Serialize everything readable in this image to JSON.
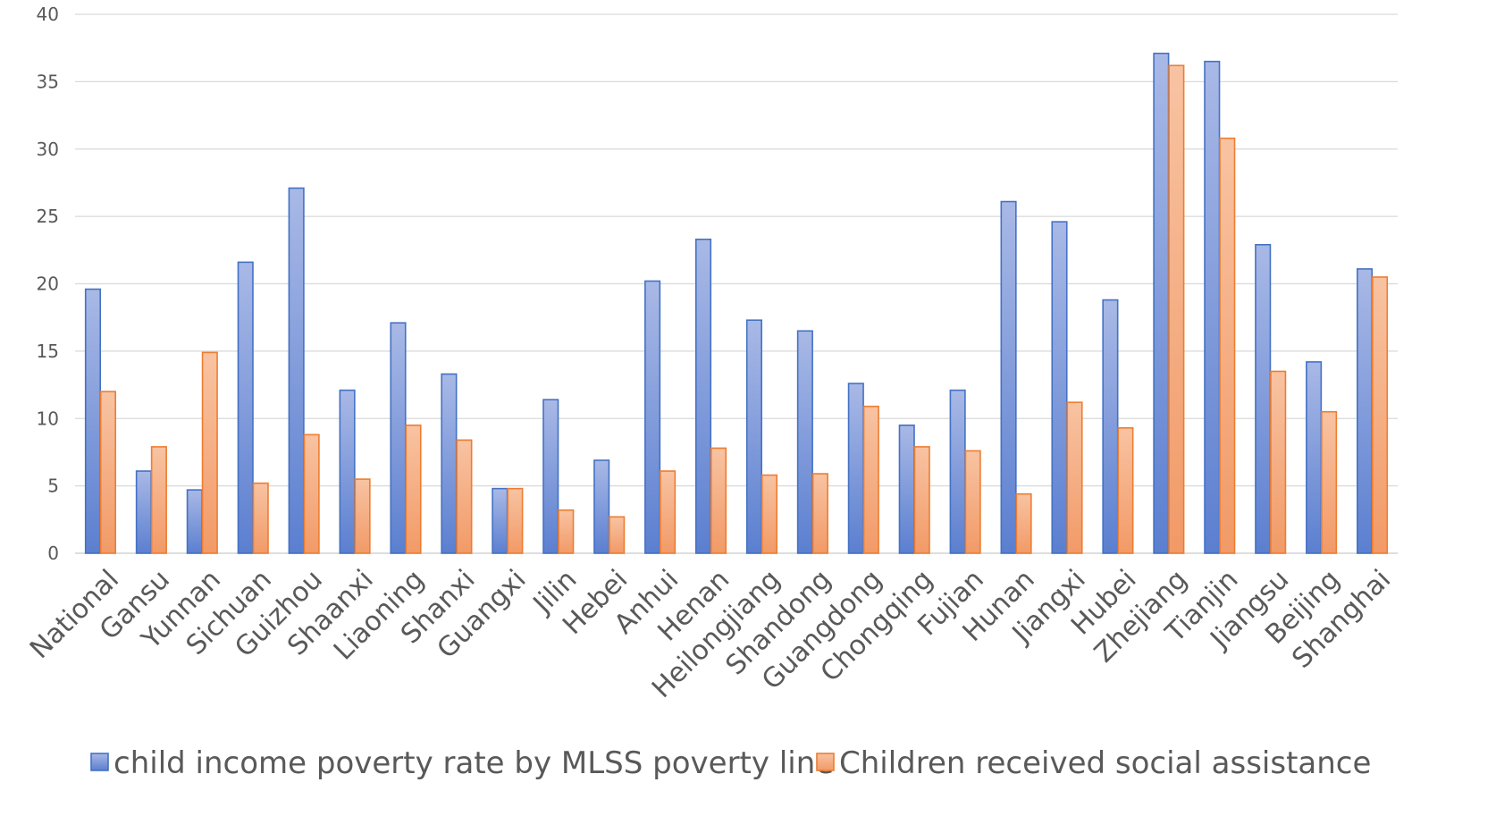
{
  "chart_data": {
    "type": "bar",
    "title": "",
    "xlabel": "",
    "ylabel": "",
    "ylim": [
      0,
      40
    ],
    "yticks": [
      0,
      5,
      10,
      15,
      20,
      25,
      30,
      35,
      40
    ],
    "grid": true,
    "legend_position": "bottom",
    "categories": [
      "National",
      "Gansu",
      "Yunnan",
      "Sichuan",
      "Guizhou",
      "Shaanxi",
      "Liaoning",
      "Shanxi",
      "Guangxi",
      "Jilin",
      "Hebei",
      "Anhui",
      "Henan",
      "Heilongjiang",
      "Shandong",
      "Guangdong",
      "Chongqing",
      "Fujian",
      "Hunan",
      "Jiangxi",
      "Hubei",
      "Zhejiang",
      "Tianjin",
      "Jiangsu",
      "Beijing",
      "Shanghai"
    ],
    "series": [
      {
        "name": "child income poverty rate by MLSS poverty line",
        "color": "#4472c4",
        "values": [
          19.6,
          6.1,
          4.7,
          21.6,
          27.1,
          12.1,
          17.1,
          13.3,
          4.8,
          11.4,
          6.9,
          20.2,
          23.3,
          17.3,
          16.5,
          12.6,
          9.5,
          12.1,
          26.1,
          24.6,
          18.8,
          37.1,
          36.5,
          22.9,
          14.2,
          21.1
        ]
      },
      {
        "name": "Children received social assistance",
        "color": "#ed7d31",
        "values": [
          12.0,
          7.9,
          14.9,
          5.2,
          8.8,
          5.5,
          9.5,
          8.4,
          4.8,
          3.2,
          2.7,
          6.1,
          7.8,
          5.8,
          5.9,
          10.9,
          7.9,
          7.6,
          4.4,
          11.2,
          9.3,
          36.2,
          30.8,
          13.5,
          10.5,
          20.5
        ]
      }
    ]
  }
}
